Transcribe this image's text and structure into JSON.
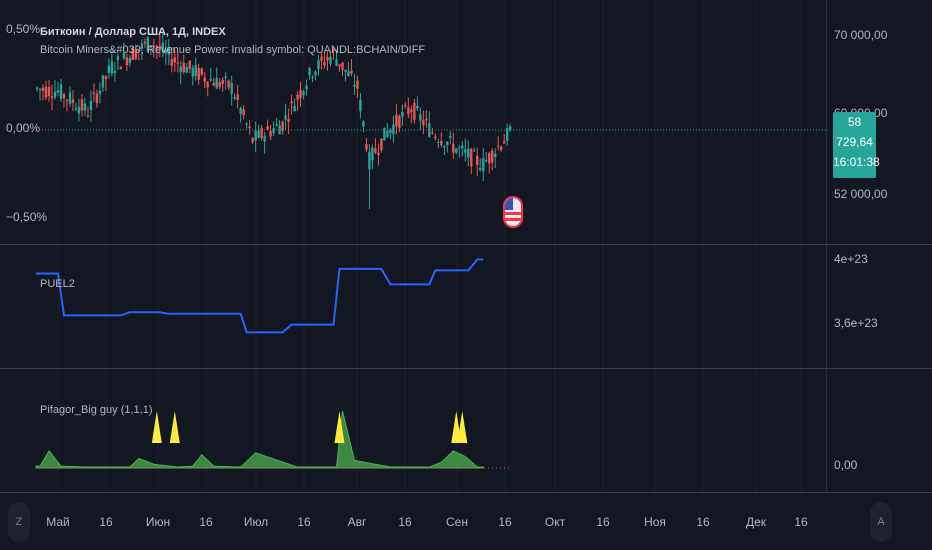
{
  "main_pane": {
    "title": "Биткоин / Доллар США, 1Д, INDEX",
    "subtitle": "Bitcoin Miners&#039; Revenue Power: Invalid symbol: QUANDL:BCHAIN/DIFF",
    "left_scale": [
      "0,50%",
      "0,00%",
      "−0,50%"
    ],
    "right_scale": [
      "70 000,00",
      "52 000,00"
    ],
    "right_scale_hidden": "60 000,00",
    "price_tag": {
      "price": "58 729,64",
      "countdown": "16:01:38"
    }
  },
  "puel_pane": {
    "title": "PUEL2",
    "right_scale": [
      "4e+23",
      "3,6e+23"
    ]
  },
  "pifagor_pane": {
    "title": "Pifagor_Big guy (1,1,1)",
    "right_scale": [
      "0,00"
    ]
  },
  "time_axis": {
    "labels": [
      "Май",
      "16",
      "Июн",
      "16",
      "Июл",
      "16",
      "Авг",
      "16",
      "Сен",
      "16",
      "Окт",
      "16",
      "Ноя",
      "16",
      "Дек",
      "16"
    ],
    "left_button": "Z",
    "right_button": "A"
  },
  "colors": {
    "up": "#26a69a",
    "down": "#ef5350",
    "puel_line": "#2962ff",
    "signal_fill": "#4caf50",
    "signal_arrow": "#ffeb3b"
  },
  "chart_data": [
    {
      "type": "line",
      "name": "PUEL2 step line",
      "x": [
        "Апр 19",
        "Май 1",
        "Май 3",
        "Май 22",
        "Май 25",
        "Июн 4",
        "Июн 7",
        "Июл 1",
        "Июл 3",
        "Июл 15",
        "Июл 18",
        "Авг 1",
        "Авг 3",
        "Авг 17",
        "Авг 20",
        "Сен 2",
        "Сен 4",
        "Сен 15",
        "Сен 18",
        "Сен 20"
      ],
      "values": [
        3.9e+23,
        3.9e+23,
        3.63e+23,
        3.63e+23,
        3.65e+23,
        3.65e+23,
        3.64e+23,
        3.64e+23,
        3.52e+23,
        3.52e+23,
        3.57e+23,
        3.57e+23,
        3.93e+23,
        3.93e+23,
        3.83e+23,
        3.83e+23,
        3.92e+23,
        3.92e+23,
        3.99e+23,
        3.99e+23
      ]
    },
    {
      "type": "area",
      "name": "Pifagor_Big guy",
      "x": [
        "Апр 19",
        "Апр 25",
        "Апр 28",
        "Май 2",
        "Май 10",
        "Май 25",
        "Май 28",
        "Июн 2",
        "Июн 10",
        "Июн 15",
        "Июн 18",
        "Июн 22",
        "Июн 30",
        "Июл 1",
        "Июл 6",
        "Июл 20",
        "Июл 28",
        "Авг 2",
        "Авг 4",
        "Авг 8",
        "Авг 20",
        "Сен 2",
        "Сен 6",
        "Сен 10",
        "Сен 14",
        "Сен 18",
        "Сен 20"
      ],
      "values": [
        0.1,
        0.1,
        0.9,
        0.1,
        0.05,
        0.05,
        0.5,
        0.2,
        0.05,
        0.1,
        0.7,
        0.1,
        0.05,
        0.05,
        0.8,
        0.05,
        0.05,
        0.05,
        3.0,
        0.4,
        0.05,
        0.05,
        0.3,
        0.9,
        0.6,
        0.05,
        0.05
      ],
      "arrows": [
        "Июн 3",
        "Июн 9",
        "Авг 3",
        "Сен 11",
        "Сен 13"
      ]
    }
  ]
}
